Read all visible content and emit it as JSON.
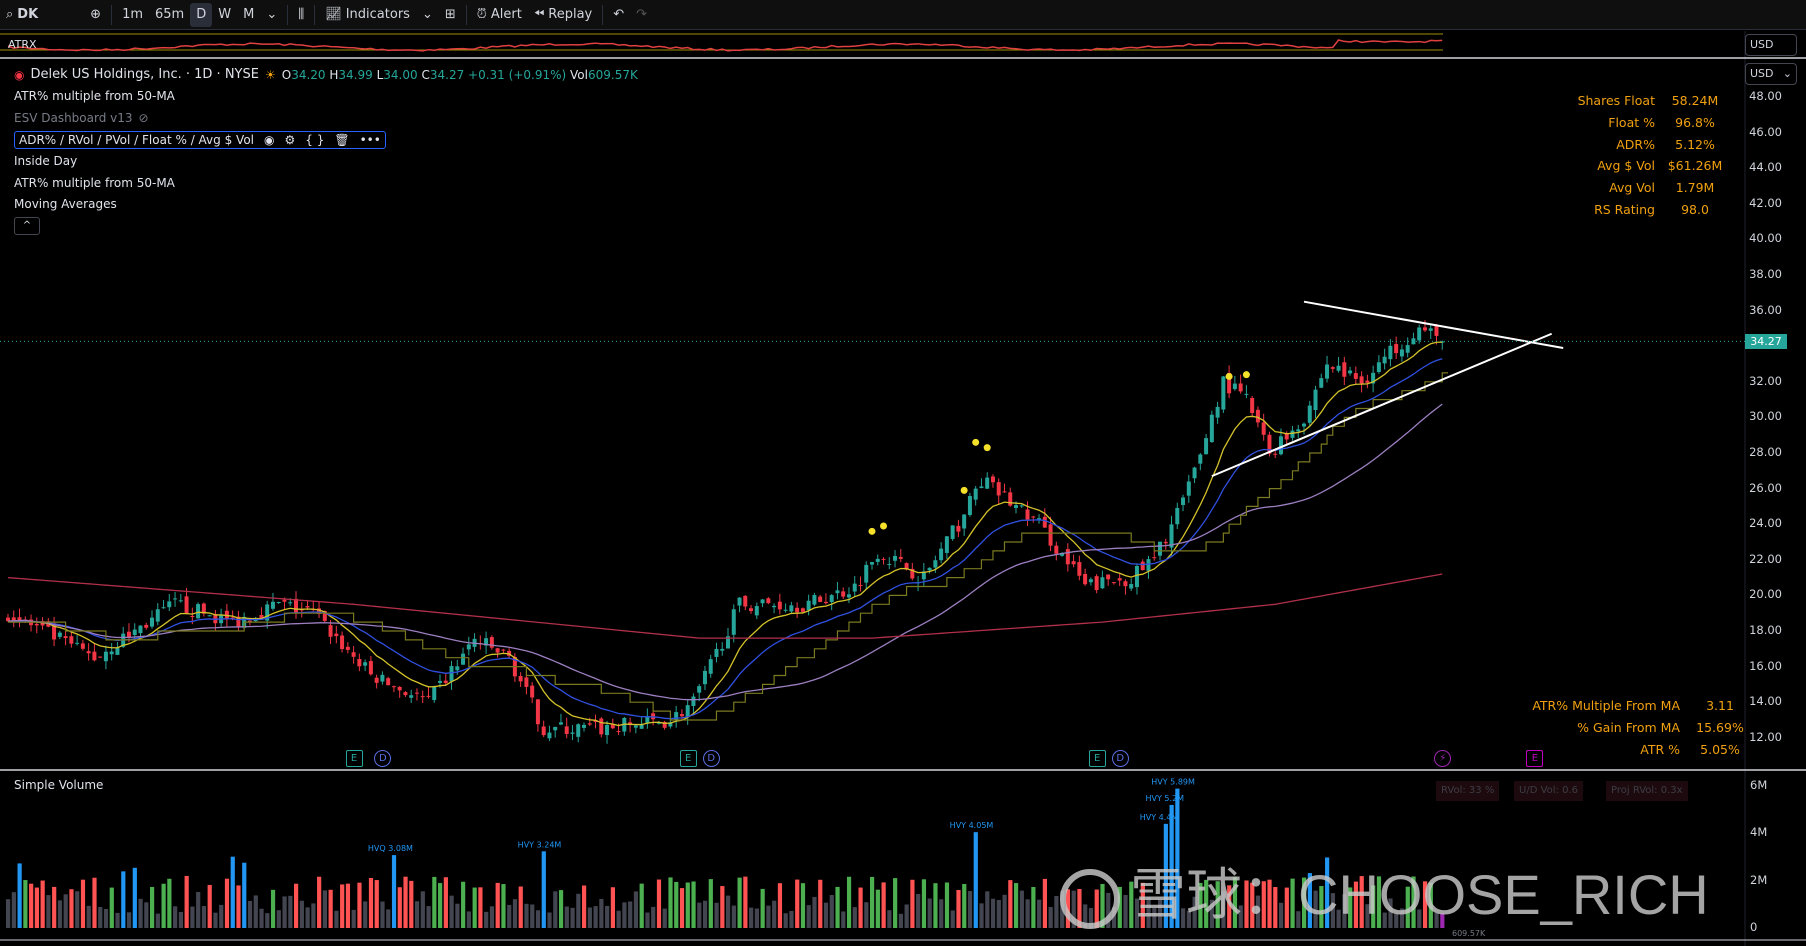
{
  "toolbar": {
    "symbol": "DK",
    "intervals": [
      "1m",
      "65m",
      "D",
      "W",
      "M"
    ],
    "active_interval": "D",
    "indicators": "Indicators",
    "alert": "Alert",
    "replay": "Replay"
  },
  "atrx": {
    "label": "ATRX",
    "currency": "USD"
  },
  "legend": {
    "company": "Delek US Holdings, Inc. · 1D · NYSE",
    "o_label": "O",
    "open": "34.20",
    "h_label": "H",
    "high": "34.99",
    "l_label": "L",
    "low": "34.00",
    "c_label": "C",
    "close": "34.27",
    "change": "+0.31 (+0.91%)",
    "vol_label": "Vol",
    "volume": "609.57K",
    "indicators": [
      "ATR% multiple from 50-MA",
      "ESV Dashboard v13",
      "ADR% / RVol / PVol / Float % / Avg $ Vol",
      "Inside Day",
      "ATR% multiple from 50-MA",
      "Moving Averages"
    ]
  },
  "currency": "USD",
  "stats_top": [
    {
      "k": "Shares Float",
      "v": "58.24M"
    },
    {
      "k": "Float %",
      "v": "96.8%"
    },
    {
      "k": "ADR%",
      "v": "5.12%"
    },
    {
      "k": "Avg $ Vol",
      "v": "$61.26M"
    },
    {
      "k": "Avg Vol",
      "v": "1.79M"
    },
    {
      "k": "RS Rating",
      "v": "98.0"
    }
  ],
  "stats_bottom": [
    {
      "k": "ATR% Multiple From MA",
      "v": "3.11"
    },
    {
      "k": "% Gain From MA",
      "v": "15.69%"
    },
    {
      "k": "ATR %",
      "v": "5.05%"
    }
  ],
  "price_axis": [
    "48.00",
    "46.00",
    "44.00",
    "42.00",
    "40.00",
    "38.00",
    "36.00",
    "34.00",
    "32.00",
    "30.00",
    "28.00",
    "26.00",
    "24.00",
    "22.00",
    "20.00",
    "18.00",
    "16.00",
    "14.00",
    "12.00"
  ],
  "last_price": "34.27",
  "volume_pane": {
    "title": "Simple Volume",
    "axis": [
      "6M",
      "4M",
      "2M",
      "0"
    ],
    "rvol": "RVol: 33 %",
    "ud_vol": "U/D Vol: 0.6",
    "proj_rvol": "Proj RVol: 0.3x",
    "last_vol": "609.57K"
  },
  "watermark": "雪球：CHOOSE_RICH",
  "events": [
    {
      "type": "E",
      "bar": 60
    },
    {
      "type": "D",
      "bar": 65
    },
    {
      "type": "E",
      "bar": 118
    },
    {
      "type": "D",
      "bar": 122
    },
    {
      "type": "E",
      "bar": 189
    },
    {
      "type": "D",
      "bar": 193
    },
    {
      "type": "⚡",
      "bar": 249
    },
    {
      "type": "E",
      "bar": 265
    }
  ],
  "chart_data": {
    "type": "candlestick",
    "bars": 250,
    "ylim": [
      11,
      49
    ],
    "price_path": [
      [
        0,
        19
      ],
      [
        9,
        17.5
      ],
      [
        15,
        16.5
      ],
      [
        29,
        19.5
      ],
      [
        39,
        18.5
      ],
      [
        47,
        19.5
      ],
      [
        53,
        19
      ],
      [
        63,
        15.5
      ],
      [
        73,
        14
      ],
      [
        81,
        17.5
      ],
      [
        87,
        16.5
      ],
      [
        93,
        12.5
      ],
      [
        103,
        12.5
      ],
      [
        115,
        13
      ],
      [
        119,
        14
      ],
      [
        127,
        19.5
      ],
      [
        139,
        19.5
      ],
      [
        147,
        20.5
      ],
      [
        151,
        22.5
      ],
      [
        159,
        21
      ],
      [
        165,
        24
      ],
      [
        169,
        26.5
      ],
      [
        173,
        25.5
      ],
      [
        179,
        24
      ],
      [
        187,
        20.5
      ],
      [
        195,
        21
      ],
      [
        199,
        22
      ],
      [
        205,
        26
      ],
      [
        211,
        32
      ],
      [
        215,
        31
      ],
      [
        219,
        28
      ],
      [
        225,
        30
      ],
      [
        229,
        33
      ],
      [
        235,
        32
      ],
      [
        241,
        34
      ],
      [
        245,
        35
      ],
      [
        249,
        34.27
      ]
    ],
    "ma200_path": [
      [
        0,
        21
      ],
      [
        60,
        19.5
      ],
      [
        120,
        17.6
      ],
      [
        150,
        17.6
      ],
      [
        190,
        18.5
      ],
      [
        220,
        19.5
      ],
      [
        249,
        21.2
      ]
    ],
    "trendlines": [
      {
        "from": [
          225,
          36.5
        ],
        "to": [
          270,
          33.9
        ]
      },
      {
        "from": [
          209,
          26.7
        ],
        "to": [
          268,
          34.7
        ]
      }
    ],
    "volume_labels": [
      {
        "bar": 67,
        "text": "HVQ 3.08M",
        "value": 3.08
      },
      {
        "bar": 93,
        "text": "HVY 3.24M",
        "value": 3.24
      },
      {
        "bar": 168,
        "text": "HVY 4.05M",
        "value": 4.05
      },
      {
        "bar": 201,
        "text": "HVY 4.4M",
        "value": 4.4
      },
      {
        "bar": 202,
        "text": "HVY 5.2M",
        "value": 5.2
      },
      {
        "bar": 203,
        "text": "HVY 5.89M",
        "value": 5.89
      }
    ],
    "dots": [
      [
        150,
        23.6
      ],
      [
        152,
        23.9
      ],
      [
        166,
        25.9
      ],
      [
        168,
        28.6
      ],
      [
        170,
        28.3
      ],
      [
        212,
        32.3
      ],
      [
        215,
        32.4
      ]
    ]
  }
}
